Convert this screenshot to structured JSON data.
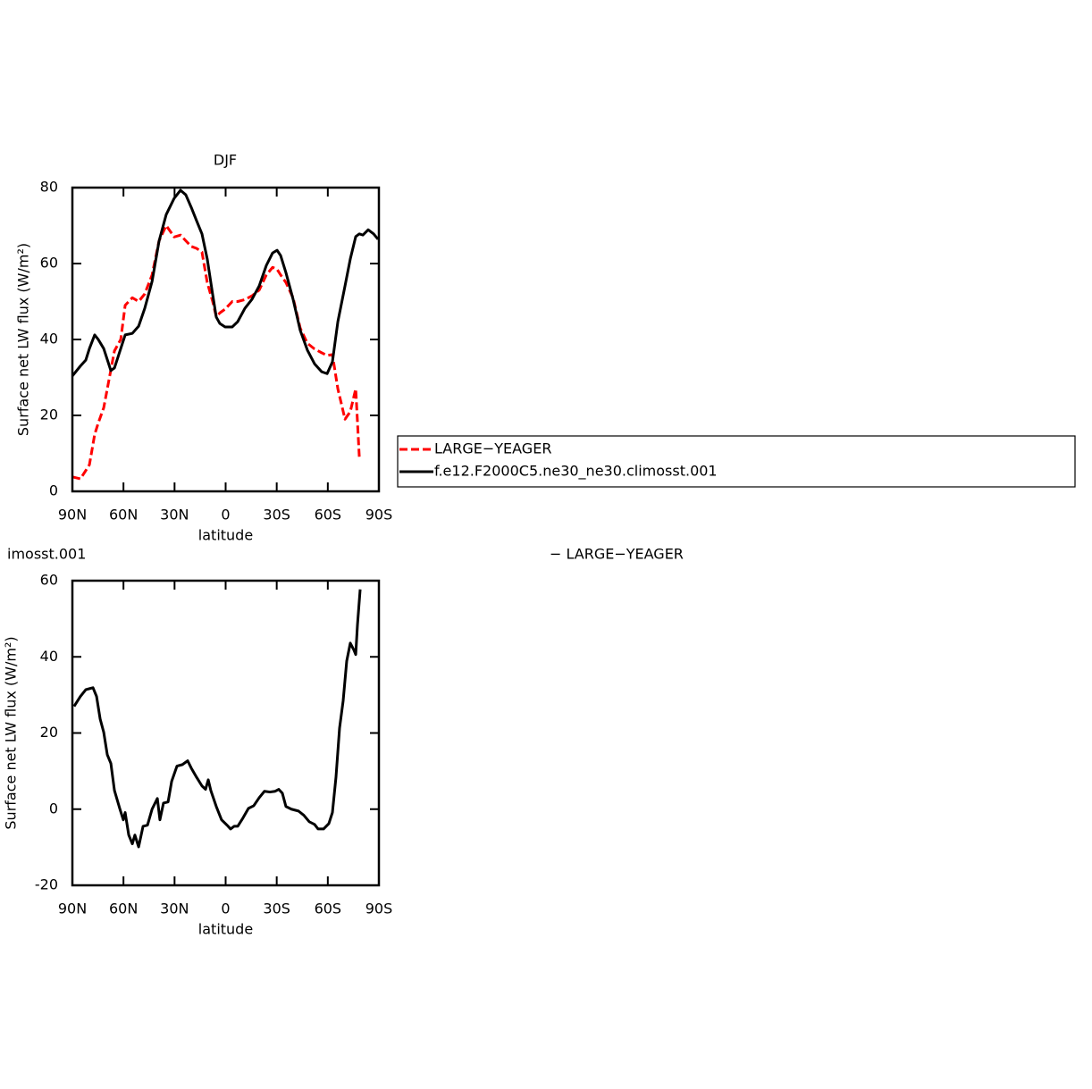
{
  "chart_data": [
    {
      "type": "line",
      "title": "DJF",
      "xlabel": "latitude",
      "ylabel": "Surface net LW flux (W/m²)",
      "x": [
        90,
        85.3,
        82.1,
        80,
        76.9,
        74.8,
        71.6,
        67.4,
        65.3,
        61.6,
        59,
        54.8,
        51.1,
        47.5,
        43.2,
        39.1,
        34.9,
        30.2,
        26.5,
        23.4,
        20.2,
        17.1,
        13.9,
        10.8,
        7.6,
        5.5,
        3.4,
        0.3,
        -3.9,
        -7.1,
        -11.3,
        -15.5,
        -19.7,
        -23.9,
        -27.6,
        -30.2,
        -32.3,
        -35.4,
        -39.6,
        -43.8,
        -48,
        -52.2,
        -56.4,
        -59.6,
        -62.7,
        -65.9,
        -70.1,
        -73.2,
        -76.4,
        -78.5,
        -80.6,
        -83.7,
        -86.9,
        -89.5
      ],
      "series": [
        {
          "name": "LARGE−YEAGER",
          "color": "#ff0000",
          "linestyle": "dashed",
          "values": [
            3.8,
            3.3,
            5.5,
            7,
            15,
            18,
            22,
            32,
            37,
            40,
            49,
            51,
            50,
            52,
            57,
            66,
            70,
            67,
            67.5,
            66,
            64.5,
            64,
            63,
            55,
            50,
            46,
            47,
            48,
            50,
            50,
            50.5,
            51.5,
            53,
            57,
            59,
            58.5,
            57,
            55,
            51,
            43,
            39,
            37.5,
            36.5,
            35.8,
            36,
            27,
            19,
            21,
            27,
            9,
            null,
            null,
            null,
            null
          ]
        },
        {
          "name": "f.e12.F2000C5.ne30_ne30.climosst.001",
          "color": "#000000",
          "linestyle": "solid",
          "values": [
            30.4,
            33,
            34.6,
            37.6,
            41.2,
            40,
            37.6,
            31.8,
            32.5,
            37.6,
            41.2,
            41.6,
            43.5,
            48.2,
            55.3,
            65.9,
            72.9,
            77.2,
            79.3,
            78.1,
            74.8,
            71.3,
            67.8,
            61.2,
            51.8,
            45.9,
            44.2,
            43.3,
            43.3,
            44.7,
            48.2,
            50.6,
            54.1,
            59.5,
            62.8,
            63.5,
            62.1,
            57.6,
            50.6,
            42.4,
            37.2,
            33.6,
            31.5,
            31,
            34.1,
            44.7,
            54.1,
            61.2,
            67.1,
            67.8,
            67.5,
            68.9,
            67.8,
            66.4
          ]
        }
      ],
      "xlim": [
        90,
        -90
      ],
      "xticks": [
        {
          "value": 90,
          "label": "90N"
        },
        {
          "value": 60,
          "label": "60N"
        },
        {
          "value": 30,
          "label": "30N"
        },
        0,
        {
          "value": -30,
          "label": "30S"
        },
        {
          "value": -60,
          "label": "60S"
        },
        {
          "value": -90,
          "label": "90S"
        }
      ],
      "ylim": [
        0,
        80
      ],
      "yticks": [
        0,
        20,
        40,
        60,
        80
      ],
      "legend": "right"
    },
    {
      "type": "line",
      "title": "imosst.001",
      "subtitle": "− LARGE−YEAGER",
      "xlabel": "latitude",
      "ylabel": "Surface net LW flux (W/m²)",
      "x": [
        89,
        85.3,
        82.1,
        79.5,
        77.9,
        75.8,
        73.7,
        71.6,
        69.5,
        67.4,
        65.3,
        62.2,
        60.1,
        59,
        56.9,
        54.8,
        53.3,
        51.1,
        48.5,
        45.9,
        43.2,
        40.1,
        38.6,
        36.5,
        33.8,
        31.7,
        28.6,
        25.4,
        22.3,
        20.2,
        17.1,
        13.9,
        11.8,
        10.2,
        8.7,
        5.5,
        2.4,
        -0.8,
        -2.9,
        -5,
        -7.1,
        -10.2,
        -13.4,
        -16.5,
        -19.7,
        -22.8,
        -26,
        -29.1,
        -31.2,
        -33.3,
        -35.4,
        -38.6,
        -42.8,
        -45.9,
        -49.1,
        -52.2,
        -54.3,
        -57.5,
        -60.6,
        -62.7,
        -64.8,
        -66.9,
        -69,
        -71.1,
        -73.2,
        -75.3,
        -76.4,
        -77.4,
        -79
      ],
      "series": [
        {
          "color": "#000000",
          "linestyle": "solid",
          "values": [
            27,
            29.6,
            31.4,
            31.7,
            31.9,
            29.6,
            23.7,
            20.2,
            14.3,
            12,
            4.9,
            0.2,
            -2.8,
            -0.9,
            -6.8,
            -9.1,
            -6.8,
            -9.9,
            -4.5,
            -4.2,
            0,
            2.8,
            -2.8,
            1.6,
            1.9,
            7.3,
            11.3,
            11.7,
            12.7,
            10.8,
            8.4,
            6.1,
            5.2,
            7.7,
            4.9,
            0.7,
            -2.8,
            -4.2,
            -5.2,
            -4.5,
            -4.5,
            -2.3,
            0.2,
            0.9,
            3,
            4.7,
            4.5,
            4.7,
            5.2,
            4.2,
            0.7,
            0,
            -0.5,
            -1.6,
            -3.3,
            -4,
            -5.2,
            -5.2,
            -3.8,
            -0.9,
            8.4,
            21.3,
            28.4,
            38.9,
            43.6,
            41.8,
            40.6,
            48.3,
            57.7
          ]
        }
      ],
      "xlim": [
        90,
        -90
      ],
      "xticks": [
        {
          "value": 90,
          "label": "90N"
        },
        {
          "value": 60,
          "label": "60N"
        },
        {
          "value": 30,
          "label": "30N"
        },
        0,
        {
          "value": -30,
          "label": "30S"
        },
        {
          "value": -60,
          "label": "60S"
        },
        {
          "value": -90,
          "label": "90S"
        }
      ],
      "ylim": [
        -20,
        60
      ],
      "yticks": [
        -20,
        0,
        20,
        40,
        60
      ]
    }
  ]
}
